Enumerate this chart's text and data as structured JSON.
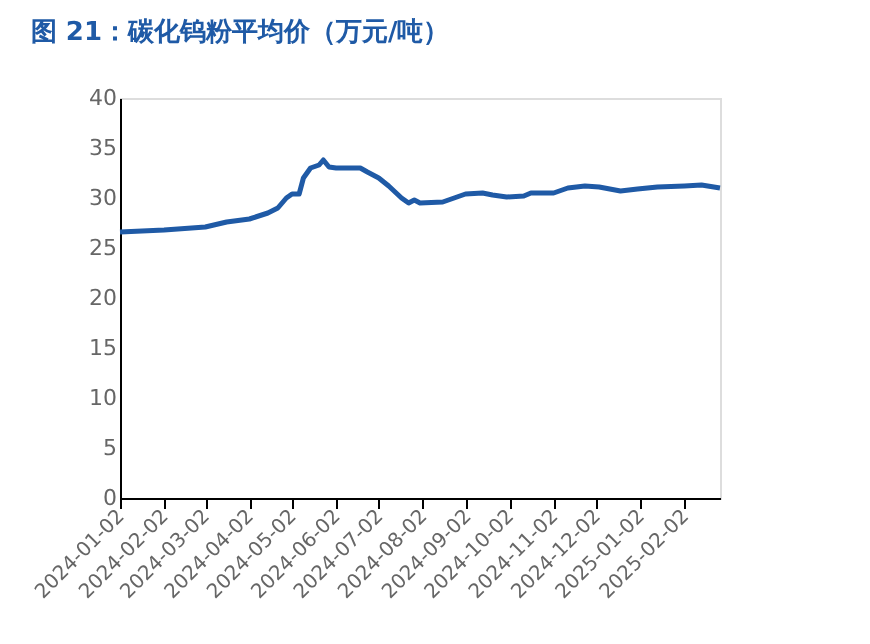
{
  "chart_data": {
    "type": "line",
    "title": "图 21：碳化钨粉平均价（万元/吨）",
    "x": [
      "2024-01-02",
      "2024-02-02",
      "2024-03-02",
      "2024-03-17",
      "2024-04-02",
      "2024-04-15",
      "2024-04-22",
      "2024-04-28",
      "2024-05-02",
      "2024-05-07",
      "2024-05-10",
      "2024-05-15",
      "2024-05-21",
      "2024-05-24",
      "2024-05-28",
      "2024-06-02",
      "2024-06-19",
      "2024-06-24",
      "2024-07-02",
      "2024-07-09",
      "2024-07-18",
      "2024-07-23",
      "2024-07-27",
      "2024-07-31",
      "2024-08-16",
      "2024-09-01",
      "2024-09-13",
      "2024-09-20",
      "2024-09-30",
      "2024-10-12",
      "2024-10-17",
      "2024-11-02",
      "2024-11-12",
      "2024-11-24",
      "2024-12-04",
      "2024-12-19",
      "2024-12-31",
      "2025-01-14",
      "2025-02-02",
      "2025-02-14",
      "2025-02-27"
    ],
    "series": [
      {
        "color": "#1f5aa6",
        "values": [
          26.6,
          26.8,
          27.1,
          27.6,
          27.9,
          28.5,
          29.0,
          30.0,
          30.4,
          30.4,
          32.0,
          33.0,
          33.3,
          33.8,
          33.1,
          33.0,
          33.0,
          32.6,
          32.0,
          31.2,
          30.0,
          29.5,
          29.8,
          29.5,
          29.6,
          30.4,
          30.5,
          30.3,
          30.1,
          30.2,
          30.5,
          30.5,
          31.0,
          31.2,
          31.1,
          30.7,
          30.9,
          31.1,
          31.2,
          31.3,
          31.0
        ]
      }
    ],
    "xlim": [
      "2024-01-02",
      "2025-02-27"
    ],
    "xticks": [
      "2024-01-02",
      "2024-02-02",
      "2024-03-02",
      "2024-04-02",
      "2024-05-02",
      "2024-06-02",
      "2024-07-02",
      "2024-08-02",
      "2024-09-02",
      "2024-10-02",
      "2024-11-02",
      "2024-12-02",
      "2025-01-02",
      "2025-02-02"
    ],
    "ylim": [
      0,
      40
    ],
    "yticks": [
      0,
      5,
      10,
      15,
      20,
      25,
      30,
      35,
      40
    ],
    "grid": false,
    "legend": false,
    "marker": "none",
    "line_style": "solid"
  }
}
